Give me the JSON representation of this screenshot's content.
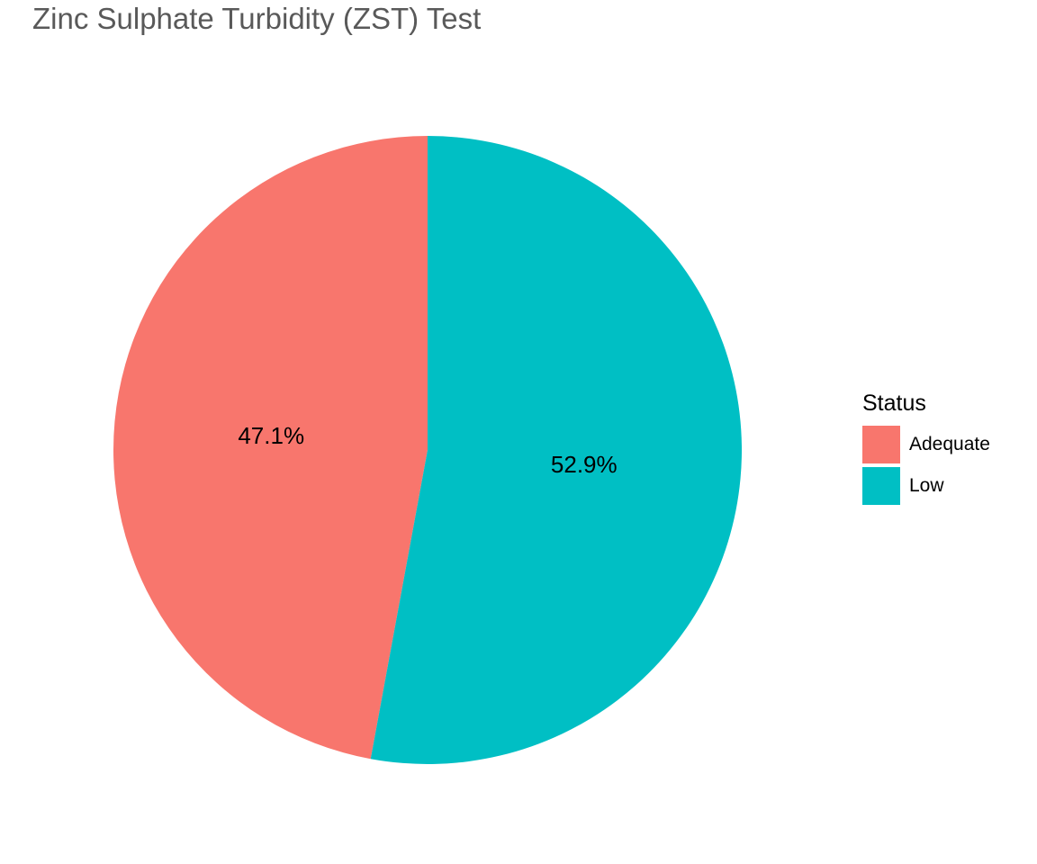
{
  "title": "Zinc Sulphate Turbidity (ZST) Test",
  "legend": {
    "title": "Status",
    "items": [
      {
        "label": "Adequate",
        "color": "#F8766D"
      },
      {
        "label": "Low",
        "color": "#00BFC4"
      }
    ]
  },
  "chart_data": {
    "type": "pie",
    "title": "Zinc Sulphate Turbidity (ZST) Test",
    "legend_title": "Status",
    "legend_position": "right",
    "slices": [
      {
        "label": "Adequate",
        "value": 47.1,
        "display": "47.1%",
        "color": "#F8766D"
      },
      {
        "label": "Low",
        "value": 52.9,
        "display": "52.9%",
        "color": "#00BFC4"
      }
    ]
  }
}
